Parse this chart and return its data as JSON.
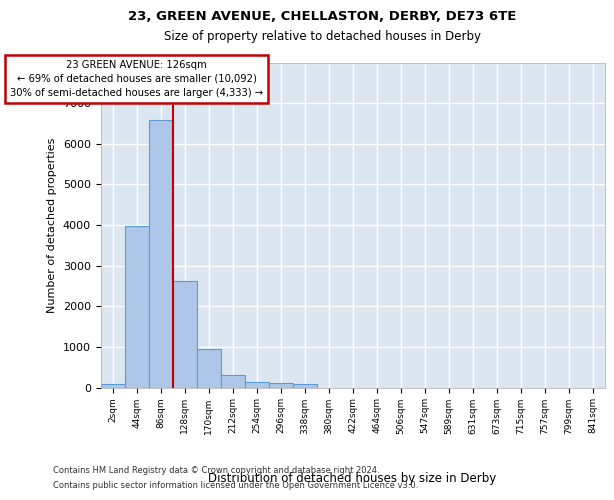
{
  "title1": "23, GREEN AVENUE, CHELLASTON, DERBY, DE73 6TE",
  "title2": "Size of property relative to detached houses in Derby",
  "xlabel": "Distribution of detached houses by size in Derby",
  "ylabel": "Number of detached properties",
  "footer1": "Contains HM Land Registry data © Crown copyright and database right 2024.",
  "footer2": "Contains public sector information licensed under the Open Government Licence v3.0.",
  "bin_labels": [
    "2sqm",
    "44sqm",
    "86sqm",
    "128sqm",
    "170sqm",
    "212sqm",
    "254sqm",
    "296sqm",
    "338sqm",
    "380sqm",
    "422sqm",
    "464sqm",
    "506sqm",
    "547sqm",
    "589sqm",
    "631sqm",
    "673sqm",
    "715sqm",
    "757sqm",
    "799sqm",
    "841sqm"
  ],
  "bar_values": [
    80,
    3980,
    6580,
    2620,
    960,
    310,
    130,
    110,
    90,
    0,
    0,
    0,
    0,
    0,
    0,
    0,
    0,
    0,
    0,
    0,
    0
  ],
  "bar_color": "#aec6e8",
  "bar_edge_color": "#5b9bd5",
  "background_color": "#dce6f1",
  "grid_color": "#ffffff",
  "vline_x": 3.0,
  "vline_color": "#c00000",
  "annotation_text": "23 GREEN AVENUE: 126sqm\n← 69% of detached houses are smaller (10,092)\n30% of semi-detached houses are larger (4,333) →",
  "annotation_box_color": "#c00000",
  "ylim": [
    0,
    8000
  ],
  "yticks": [
    0,
    1000,
    2000,
    3000,
    4000,
    5000,
    6000,
    7000,
    8000
  ]
}
